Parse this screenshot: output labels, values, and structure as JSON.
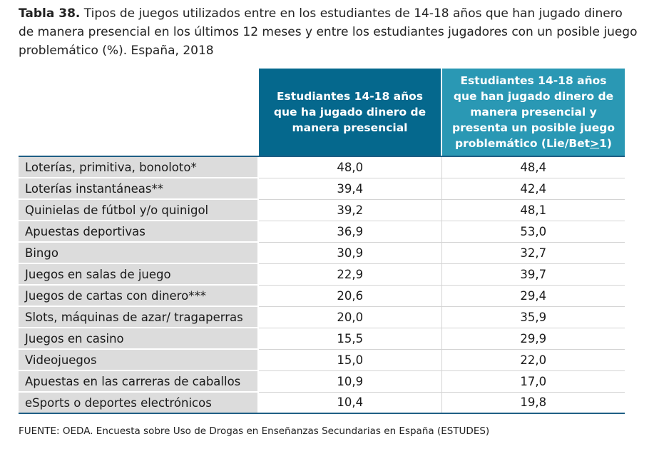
{
  "caption": {
    "label": "Tabla 38.",
    "text": " Tipos de juegos utilizados entre en los estudiantes de 14-18 años que han jugado dinero de manera presencial en los últimos 12 meses y entre los estudiantes jugadores con un posible juego problemático (%). España, 2018"
  },
  "table": {
    "headers": {
      "col1": "Estudiantes 14-18 años que ha jugado dinero de manera presencial",
      "col2_prefix": "Estudiantes 14-18 años que han jugado dinero de manera presencial y presenta un posible juego problemático (Lie/Bet",
      "col2_ge": ">",
      "col2_suffix": "1)"
    },
    "rows": [
      {
        "label": "Loterías, primitiva, bonoloto*",
        "v1": "48,0",
        "v2": "48,4"
      },
      {
        "label": "Loterías instantáneas**",
        "v1": "39,4",
        "v2": "42,4"
      },
      {
        "label": "Quinielas de fútbol y/o quinigol",
        "v1": "39,2",
        "v2": "48,1"
      },
      {
        "label": "Apuestas deportivas",
        "v1": "36,9",
        "v2": "53,0"
      },
      {
        "label": "Bingo",
        "v1": "30,9",
        "v2": "32,7"
      },
      {
        "label": "Juegos en salas de juego",
        "v1": "22,9",
        "v2": "39,7"
      },
      {
        "label": "Juegos de cartas con dinero***",
        "v1": "20,6",
        "v2": "29,4"
      },
      {
        "label": "Slots, máquinas de azar/ tragaperras",
        "v1": "20,0",
        "v2": "35,9"
      },
      {
        "label": "Juegos en casino",
        "v1": "15,5",
        "v2": "29,9"
      },
      {
        "label": "Videojuegos",
        "v1": "15,0",
        "v2": "22,0"
      },
      {
        "label": "Apuestas en las carreras de caballos",
        "v1": "10,9",
        "v2": "17,0"
      },
      {
        "label": "eSports o deportes electrónicos",
        "v1": "10,4",
        "v2": "19,8"
      }
    ]
  },
  "source": "FUENTE: OEDA. Encuesta sobre Uso de Drogas en Enseñanzas Secundarias en España (ESTUDES)"
}
